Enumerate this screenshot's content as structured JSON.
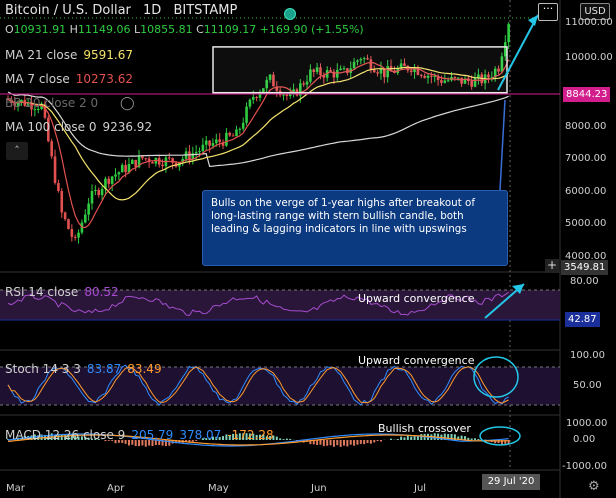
{
  "header": {
    "title": "Bitcoin / U.S. Dollar",
    "interval": "1D",
    "exchange": "BITSTAMP",
    "ohlc": {
      "o_label": "O",
      "o": "10931.91",
      "h_label": "H",
      "h": "11149.06",
      "l_label": "L",
      "l": "10855.81",
      "c_label": "C",
      "c": "11109.17",
      "change": "+169.90 (+1.55%)"
    },
    "currency_button": "USD",
    "more_button": "···"
  },
  "indicators": {
    "ma21": {
      "label": "MA 21 close",
      "value": "9591.67",
      "color": "#f5e26a"
    },
    "ma7": {
      "label": "MA 7 close",
      "value": "10273.62",
      "color": "#e2514f"
    },
    "bb": {
      "label": "BB 20 close 2 0"
    },
    "ma100": {
      "label": "MA 100 close 0",
      "value": "9236.92",
      "color": "#d8d8d8"
    }
  },
  "price_axis": {
    "labels": [
      "11000.00",
      "10000.00",
      "9000.00",
      "8000.00",
      "7000.00",
      "6000.00",
      "5000.00",
      "4000.00"
    ],
    "current_tag": "8844.23",
    "crosshair_tag": "3549.81"
  },
  "callout_text": "Bulls on the verge of 1-year highs after breakout of long-lasting range with stern bullish candle, both leading & lagging indicators in line with upswings",
  "rsi": {
    "label": "RSI 14 close",
    "value": "80.52",
    "annotation": "Upward convergence",
    "axis_top": "80.00",
    "tag": "42.87"
  },
  "stoch": {
    "label": "Stoch 14 3 3",
    "k": "83.87",
    "d": "83.49",
    "annotation": "Upward convergence",
    "axis": [
      "100.00",
      "50.00"
    ]
  },
  "macd": {
    "label": "MACD 12 26 close 9",
    "macd": "205.79",
    "signal": "378.07",
    "hist": "-172.28",
    "annotation": "Bullish crossover",
    "axis": [
      "1000.00",
      "0.00",
      "-1000.00"
    ]
  },
  "time_axis": {
    "labels": [
      "Mar",
      "Apr",
      "May",
      "Jun",
      "Jul"
    ],
    "current_date": "29 Jul '20"
  },
  "colors": {
    "up": "#2ecc40",
    "down": "#e2514f",
    "callout": "#0c3a80",
    "annotation_arrow": "#24c6e8",
    "bb_fill": "#3a2a4a",
    "rsi_line": "#a64dcf",
    "stoch_k": "#2f8cff",
    "stoch_d": "#ff9a2e"
  },
  "chart_data": {
    "type": "line",
    "price_ylim": [
      3500,
      11500
    ],
    "price_series_approx": [
      {
        "name": "close",
        "x": [
          "Mar",
          "Apr",
          "May",
          "Jun",
          "Jul",
          "29 Jul '20"
        ],
        "values": [
          8600,
          6400,
          8800,
          9500,
          9200,
          11109
        ]
      }
    ],
    "range_box": {
      "x_from": "May",
      "x_to": "29 Jul '20",
      "y_from": 8900,
      "y_to": 10300
    }
  }
}
